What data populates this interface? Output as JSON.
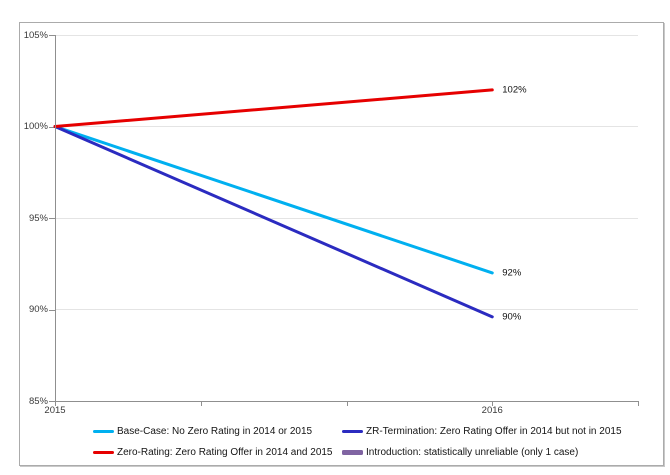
{
  "figure": {
    "background": "#FFFFFF",
    "border_color": "#ABABAB"
  },
  "chart_data": {
    "type": "line",
    "title": "",
    "x": [
      2015,
      2016
    ],
    "x_axis": {
      "lim": [
        2015,
        2016.3333
      ],
      "tick_values": [
        2015,
        2015.3333,
        2015.6667,
        2016,
        2016.3333
      ],
      "tick_labels": [
        {
          "value": 2015,
          "label": "2015"
        },
        {
          "value": 2016,
          "label": "2016"
        }
      ]
    },
    "y_axis": {
      "lim": [
        85,
        105
      ],
      "grid": true,
      "ticks": [
        {
          "value": 105,
          "label": "105%"
        },
        {
          "value": 100,
          "label": "100%"
        },
        {
          "value": 95,
          "label": "95%"
        },
        {
          "value": 90,
          "label": "90%"
        },
        {
          "value": 85,
          "label": "85%"
        }
      ]
    },
    "series": [
      {
        "id": "base-case",
        "name": "Base-Case: No Zero Rating in 2014 or 2015",
        "color": "#00B0F0",
        "values": [
          100,
          92
        ],
        "end_label": "92%"
      },
      {
        "id": "zr-termination",
        "name": "ZR-Termination: Zero Rating Offer in 2014 but not in 2015",
        "color": "#2B2BC0",
        "values": [
          100,
          89.6
        ],
        "end_label": "90%"
      },
      {
        "id": "zero-rating",
        "name": "Zero-Rating: Zero Rating Offer in 2014 and 2015",
        "color": "#E60000",
        "values": [
          100,
          102
        ],
        "end_label": "102%"
      },
      {
        "id": "introduction",
        "name": "Introduction: statistically unreliable (only 1 case)",
        "color": "#8064A2",
        "values": [],
        "end_label": ""
      }
    ],
    "legend_position": "bottom-two-columns"
  },
  "legend": {
    "items": [
      {
        "label": "Base-Case: No Zero Rating in 2014 or 2015",
        "color": "#00B0F0",
        "thick": false
      },
      {
        "label": "Zero-Rating: Zero Rating Offer in 2014 and 2015",
        "color": "#E60000",
        "thick": false
      },
      {
        "label": "ZR-Termination: Zero Rating Offer in 2014 but not in 2015",
        "color": "#2B2BC0",
        "thick": false
      },
      {
        "label": "Introduction: statistically unreliable (only 1 case)",
        "color": "#8064A2",
        "thick": true
      }
    ]
  }
}
